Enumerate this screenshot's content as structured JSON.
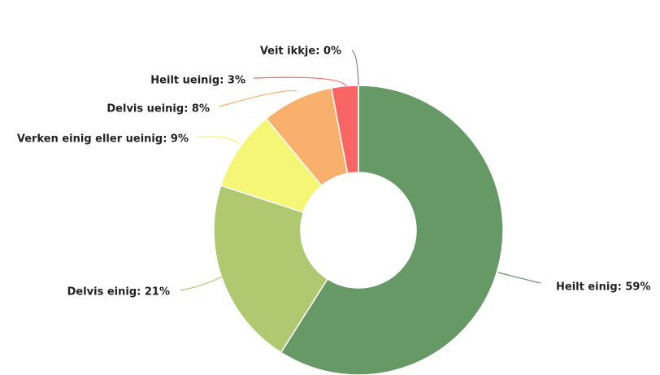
{
  "chart_data": {
    "type": "donut",
    "labels": [
      "Heilt einig: 59%",
      "Delvis einig: 21%",
      "Verken einig eller ueinig: 9%",
      "Delvis ueinig: 8%",
      "Heilt ueinig: 3%",
      "Veit ikkje: 0%"
    ],
    "values": [
      59,
      21,
      9,
      8,
      3,
      0
    ],
    "colors": [
      "#669966",
      "#b0c970",
      "#f5f576",
      "#f9b06c",
      "#f96464",
      "#808080"
    ]
  }
}
